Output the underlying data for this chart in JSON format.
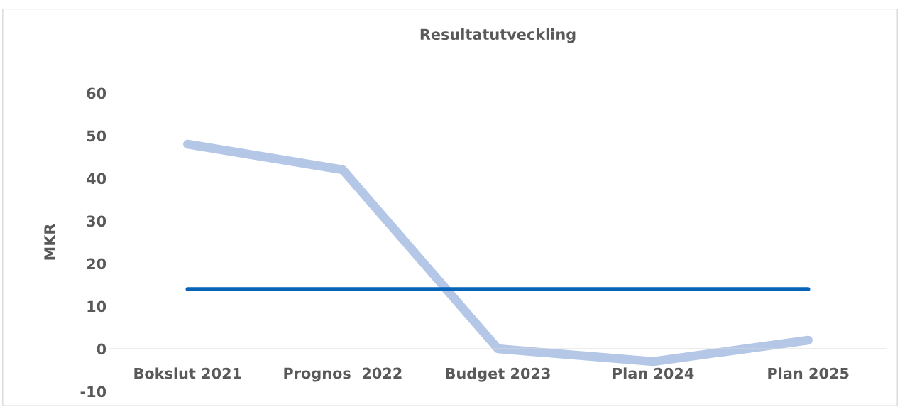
{
  "chart_data": {
    "type": "line",
    "title": "Resultatutveckling",
    "ylabel": "MKR",
    "categories": [
      "Bokslut 2021",
      "Prognos  2022",
      "Budget 2023",
      "Plan 2024",
      "Plan 2025"
    ],
    "series": [
      {
        "color": "#b4c7e7",
        "values": [
          48,
          42,
          0,
          -3,
          2
        ]
      },
      {
        "color": "#0563b8",
        "values": [
          14,
          14,
          14,
          14,
          14
        ]
      }
    ],
    "ylim": [
      -10,
      60
    ],
    "yticks": [
      -10,
      0,
      10,
      20,
      30,
      40,
      50,
      60
    ],
    "grid": false,
    "legend": false,
    "marker": "none",
    "line_style": "solid"
  }
}
